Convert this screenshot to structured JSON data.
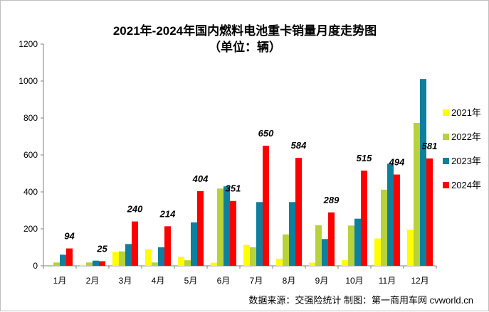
{
  "chart_data": {
    "type": "bar",
    "title": "2021年-2024年国内燃料电池重卡销量月度走势图",
    "subtitle": "（单位：辆）",
    "categories": [
      "1月",
      "2月",
      "3月",
      "4月",
      "5月",
      "6月",
      "7月",
      "8月",
      "9月",
      "10月",
      "11月",
      "12月"
    ],
    "series": [
      {
        "name": "2021年",
        "color": "#FFFF00",
        "values": [
          0,
          5,
          75,
          90,
          48,
          17,
          113,
          38,
          17,
          30,
          148,
          195
        ]
      },
      {
        "name": "2022年",
        "color": "#B7D23A",
        "values": [
          18,
          18,
          78,
          18,
          30,
          418,
          100,
          170,
          220,
          218,
          412,
          773
        ]
      },
      {
        "name": "2023年",
        "color": "#0F7F9E",
        "values": [
          60,
          28,
          118,
          100,
          235,
          430,
          345,
          345,
          145,
          255,
          552,
          1011
        ]
      },
      {
        "name": "2024年",
        "color": "#FF0000",
        "values": [
          94,
          25,
          240,
          214,
          404,
          351,
          650,
          584,
          289,
          515,
          494,
          581
        ]
      }
    ],
    "data_labels": [
      "94",
      "25",
      "240",
      "214",
      "404",
      "351",
      "650",
      "584",
      "289",
      "515",
      "494",
      "581"
    ],
    "y_ticks": [
      "0",
      "200",
      "400",
      "600",
      "800",
      "1000",
      "1200"
    ],
    "ylim": [
      0,
      1200
    ],
    "legend_position": "right",
    "source_note": "数据来源：交强险统计    制图：第一商用车网 cvworld.cn"
  }
}
